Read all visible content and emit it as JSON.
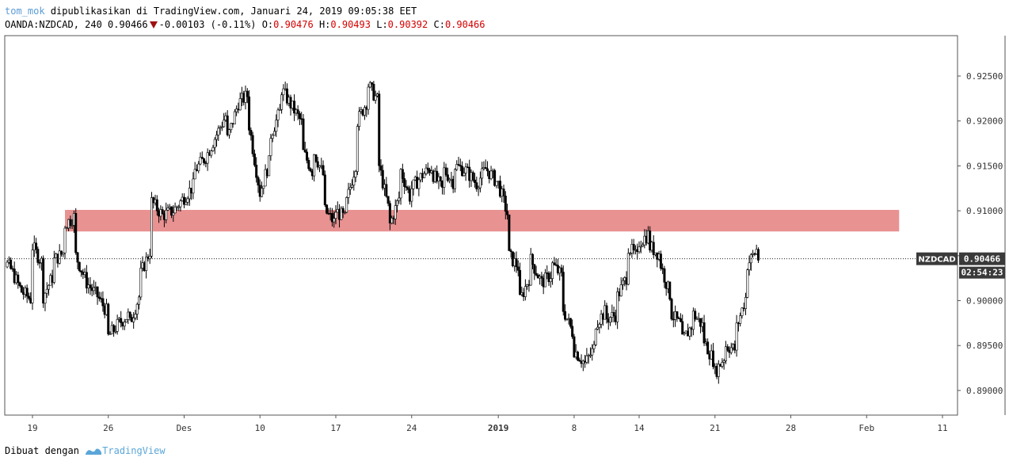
{
  "header": {
    "author": "tom_mok",
    "published_text": "dipublikasikan di TradingView.com, Januari 24, 2019 09:05:38 EET",
    "symbol_line": "OANDA:NZDCAD, 240 0.90466",
    "change": "-0.00103 (-0.11%)",
    "o_label": "O:",
    "o_value": "0.90476",
    "h_label": "H:",
    "h_value": "0.90493",
    "l_label": "L:",
    "l_value": "0.90392",
    "c_label": "C:",
    "c_value": "0.90466"
  },
  "footer": {
    "made_with": "Dibuat dengan",
    "brand": "TradingView"
  },
  "colors": {
    "zone": "#e06868",
    "candle_up": "#ffffff",
    "candle_down": "#000000",
    "axis": "#555555",
    "tag_bg": "#3a3a3a"
  },
  "chart_data": {
    "type": "candlestick",
    "symbol": "NZDCAD",
    "last_price": "0.90466",
    "countdown": "02:54:23",
    "y_ticks": [
      "0.92500",
      "0.92000",
      "0.91500",
      "0.91000",
      "0.90500",
      "0.90000",
      "0.89500",
      "0.89000"
    ],
    "ylim": [
      0.8881,
      0.9322
    ],
    "x_ticks": [
      {
        "label": "19",
        "date": "2018-11-19"
      },
      {
        "label": "26",
        "date": "2018-11-26"
      },
      {
        "label": "Des",
        "date": "2018-12-03"
      },
      {
        "label": "10",
        "date": "2018-12-10"
      },
      {
        "label": "17",
        "date": "2018-12-17"
      },
      {
        "label": "24",
        "date": "2018-12-24"
      },
      {
        "label": "2019",
        "date": "2019-01-01",
        "bold": true
      },
      {
        "label": "8",
        "date": "2019-01-08"
      },
      {
        "label": "14",
        "date": "2019-01-14"
      },
      {
        "label": "21",
        "date": "2019-01-21"
      },
      {
        "label": "28",
        "date": "2019-01-28"
      },
      {
        "label": "Feb",
        "date": "2019-02-04"
      },
      {
        "label": "11",
        "date": "2019-02-11"
      }
    ],
    "zone": {
      "from_date": "2018-11-22",
      "to_date": "2019-02-07",
      "upper": 0.9101,
      "lower": 0.9077
    },
    "close_path": [
      [
        "2018-11-15",
        0.9025
      ],
      [
        "2018-11-16",
        0.903
      ],
      [
        "2018-11-16",
        0.905
      ],
      [
        "2018-11-17",
        0.9035
      ],
      [
        "2018-11-18",
        0.901
      ],
      [
        "2018-11-19",
        0.9
      ],
      [
        "2018-11-19",
        0.906
      ],
      [
        "2018-11-20",
        0.904
      ],
      [
        "2018-11-20",
        0.9005
      ],
      [
        "2018-11-21",
        0.903
      ],
      [
        "2018-11-21",
        0.9045
      ],
      [
        "2018-11-22",
        0.9055
      ],
      [
        "2018-11-22",
        0.9085
      ],
      [
        "2018-11-23",
        0.9095
      ],
      [
        "2018-11-23",
        0.905
      ],
      [
        "2018-11-24",
        0.902
      ],
      [
        "2018-11-25",
        0.9005
      ],
      [
        "2018-11-26",
        0.8985
      ],
      [
        "2018-11-26",
        0.896
      ],
      [
        "2018-11-27",
        0.8975
      ],
      [
        "2018-11-28",
        0.8985
      ],
      [
        "2018-11-28",
        0.8975
      ],
      [
        "2018-11-29",
        0.901
      ],
      [
        "2018-11-29",
        0.903
      ],
      [
        "2018-11-30",
        0.906
      ],
      [
        "2018-11-30",
        0.911
      ],
      [
        "2018-12-01",
        0.9095
      ],
      [
        "2018-12-02",
        0.91
      ],
      [
        "2018-12-03",
        0.9115
      ],
      [
        "2018-12-04",
        0.913
      ],
      [
        "2018-12-04",
        0.9145
      ],
      [
        "2018-12-05",
        0.916
      ],
      [
        "2018-12-06",
        0.9185
      ],
      [
        "2018-12-07",
        0.921
      ],
      [
        "2018-12-07",
        0.918
      ],
      [
        "2018-12-08",
        0.922
      ],
      [
        "2018-12-09",
        0.923
      ],
      [
        "2018-12-09",
        0.9195
      ],
      [
        "2018-12-10",
        0.912
      ],
      [
        "2018-12-11",
        0.916
      ],
      [
        "2018-12-11",
        0.9185
      ],
      [
        "2018-12-12",
        0.9215
      ],
      [
        "2018-12-12",
        0.9235
      ],
      [
        "2018-12-13",
        0.9215
      ],
      [
        "2018-12-14",
        0.9195
      ],
      [
        "2018-12-14",
        0.9165
      ],
      [
        "2018-12-15",
        0.914
      ],
      [
        "2018-12-15",
        0.9165
      ],
      [
        "2018-12-16",
        0.9135
      ],
      [
        "2018-12-16",
        0.91
      ],
      [
        "2018-12-17",
        0.9085
      ],
      [
        "2018-12-17",
        0.91
      ],
      [
        "2018-12-18",
        0.909
      ],
      [
        "2018-12-18",
        0.911
      ],
      [
        "2018-12-19",
        0.916
      ],
      [
        "2018-12-19",
        0.92
      ],
      [
        "2018-12-20",
        0.9225
      ],
      [
        "2018-12-20",
        0.924
      ],
      [
        "2018-12-21",
        0.922
      ],
      [
        "2018-12-21",
        0.915
      ],
      [
        "2018-12-22",
        0.9095
      ],
      [
        "2018-12-22",
        0.9085
      ],
      [
        "2018-12-23",
        0.912
      ],
      [
        "2018-12-23",
        0.9145
      ],
      [
        "2018-12-24",
        0.911
      ],
      [
        "2018-12-24",
        0.9125
      ],
      [
        "2018-12-25",
        0.914
      ],
      [
        "2018-12-26",
        0.915
      ],
      [
        "2018-12-26",
        0.914
      ],
      [
        "2018-12-27",
        0.912
      ],
      [
        "2018-12-27",
        0.9145
      ],
      [
        "2018-12-28",
        0.913
      ],
      [
        "2018-12-28",
        0.915
      ],
      [
        "2018-12-29",
        0.9145
      ],
      [
        "2018-12-30",
        0.913
      ],
      [
        "2018-12-31",
        0.915
      ],
      [
        "2018-12-31",
        0.9145
      ],
      [
        "2019-01-01",
        0.913
      ],
      [
        "2019-01-02",
        0.909
      ],
      [
        "2019-01-02",
        0.905
      ],
      [
        "2019-01-03",
        0.9035
      ],
      [
        "2019-01-03",
        0.9
      ],
      [
        "2019-01-04",
        0.903
      ],
      [
        "2019-01-04",
        0.9045
      ],
      [
        "2019-01-05",
        0.902
      ],
      [
        "2019-01-06",
        0.903
      ],
      [
        "2019-01-06",
        0.904
      ],
      [
        "2019-01-07",
        0.9025
      ],
      [
        "2019-01-07",
        0.899
      ],
      [
        "2019-01-08",
        0.896
      ],
      [
        "2019-01-08",
        0.8945
      ],
      [
        "2019-01-09",
        0.893
      ],
      [
        "2019-01-10",
        0.895
      ],
      [
        "2019-01-10",
        0.8975
      ],
      [
        "2019-01-11",
        0.899
      ],
      [
        "2019-01-11",
        0.898
      ],
      [
        "2019-01-12",
        0.8985
      ],
      [
        "2019-01-12",
        0.9005
      ],
      [
        "2019-01-13",
        0.903
      ],
      [
        "2019-01-13",
        0.906
      ],
      [
        "2019-01-14",
        0.9045
      ],
      [
        "2019-01-14",
        0.9065
      ],
      [
        "2019-01-15",
        0.9075
      ],
      [
        "2019-01-15",
        0.906
      ],
      [
        "2019-01-16",
        0.905
      ],
      [
        "2019-01-16",
        0.904
      ],
      [
        "2019-01-17",
        0.9
      ],
      [
        "2019-01-17",
        0.8985
      ],
      [
        "2019-01-18",
        0.897
      ],
      [
        "2019-01-18",
        0.8955
      ],
      [
        "2019-01-19",
        0.8975
      ],
      [
        "2019-01-19",
        0.8985
      ],
      [
        "2019-01-20",
        0.897
      ],
      [
        "2019-01-20",
        0.8955
      ],
      [
        "2019-01-21",
        0.893
      ],
      [
        "2019-01-21",
        0.892
      ],
      [
        "2019-01-22",
        0.894
      ],
      [
        "2019-01-22",
        0.895
      ],
      [
        "2019-01-23",
        0.8945
      ],
      [
        "2019-01-23",
        0.897
      ],
      [
        "2019-01-24",
        0.901
      ],
      [
        "2019-01-24",
        0.904
      ],
      [
        "2019-01-25",
        0.906
      ],
      [
        "2019-01-25",
        0.907
      ],
      [
        "2019-01-25",
        0.9047
      ]
    ]
  }
}
